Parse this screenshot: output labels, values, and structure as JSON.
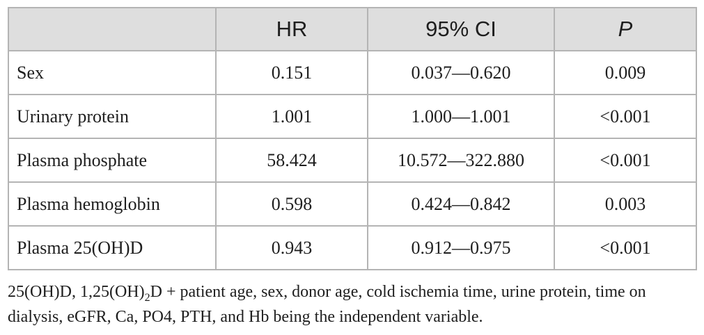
{
  "table": {
    "headers": [
      "",
      "HR",
      "95% CI",
      "P"
    ],
    "rows": [
      {
        "variable": "Sex",
        "hr": "0.151",
        "ci": "0.037—0.620",
        "p": "0.009"
      },
      {
        "variable": "Urinary protein",
        "hr": "1.001",
        "ci": "1.000—1.001",
        "p": "<0.001"
      },
      {
        "variable": "Plasma phosphate",
        "hr": "58.424",
        "ci": "10.572—322.880",
        "p": "<0.001"
      },
      {
        "variable": "Plasma hemoglobin",
        "hr": "0.598",
        "ci": "0.424—0.842",
        "p": "0.003"
      },
      {
        "variable": "Plasma 25(OH)D",
        "hr": "0.943",
        "ci": "0.912—0.975",
        "p": "<0.001"
      }
    ]
  },
  "footnote": {
    "prefix": "25(OH)D, 1,25(OH)",
    "subscript": "2",
    "suffix": "D + patient age, sex, donor age, cold ischemia time, urine protein, time on dialysis, eGFR, Ca, PO4, PTH, and Hb being the independent variable."
  }
}
